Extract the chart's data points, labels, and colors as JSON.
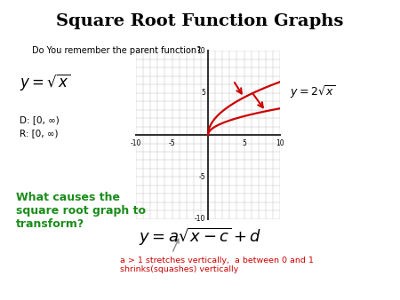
{
  "title": "Square Root Function Graphs",
  "subtitle": "Do You remember the parent function?",
  "domain": "D: [0, ∞)",
  "range": "R: [0, ∞)",
  "question": "What causes the\nsquare root graph to\ntransform?",
  "annotation": "a > 1 stretches vertically,  a between 0 and 1\nshrinks(squashes) vertically",
  "bg_color": "#ffffff",
  "title_color": "#000000",
  "question_color": "#1a8c1a",
  "annotation_color": "#cc0000",
  "curve_color": "#cc0000",
  "arrow_color": "#cc0000",
  "grid_color": "#bbbbbb",
  "axis_color": "#333333",
  "xlim": [
    -10,
    10
  ],
  "ylim": [
    -10,
    10
  ]
}
